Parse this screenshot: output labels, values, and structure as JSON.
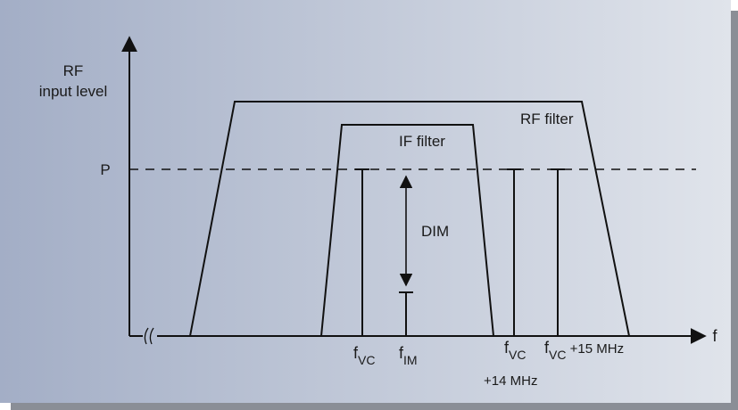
{
  "diagram": {
    "y_axis_label_line1": "RF",
    "y_axis_label_line2": "input level",
    "x_axis_label": "f",
    "level_label": "P",
    "rf_filter_label": "RF filter",
    "if_filter_label": "IF filter",
    "dim_label": "DIM",
    "carriers": [
      {
        "base": "f",
        "sub": "VC",
        "suffix": ""
      },
      {
        "base": "f",
        "sub": "IM",
        "suffix": ""
      },
      {
        "base": "f",
        "sub": "VC",
        "suffix": "",
        "line2": "+14 MHz"
      },
      {
        "base": "f",
        "sub": "VC",
        "suffix": " +15 MHz"
      }
    ],
    "colors": {
      "background_left": "#a3aec6",
      "background_right": "#dfe3ea",
      "lines": "#111111",
      "shadow": "#8a8e96"
    }
  }
}
